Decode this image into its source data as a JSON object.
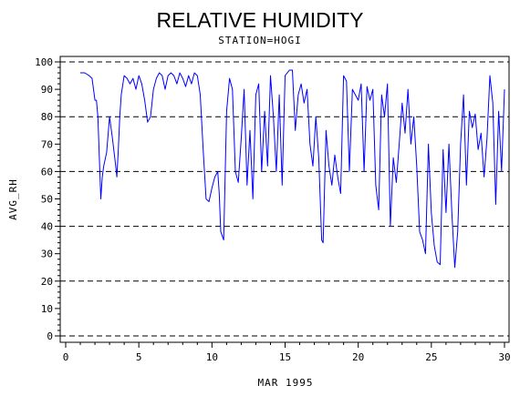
{
  "chart_data": {
    "type": "line",
    "title": "RELATIVE HUMIDITY",
    "subtitle": "STATION=HOGI",
    "xlabel": "MAR 1995",
    "ylabel": "AVG_RH",
    "xlim": [
      0,
      30
    ],
    "ylim": [
      0,
      100
    ],
    "xticks": [
      "0",
      "5",
      "10",
      "15",
      "20",
      "25",
      "30"
    ],
    "yticks": [
      "0",
      "10",
      "20",
      "30",
      "40",
      "50",
      "60",
      "70",
      "80",
      "90",
      "100"
    ],
    "reference_lines": [
      0,
      20,
      40,
      60,
      80,
      100
    ],
    "line_color": "#0000ff",
    "series": [
      {
        "x": [
          1.0,
          1.3,
          1.6,
          1.8,
          2.0,
          2.1,
          2.2,
          2.3,
          2.4,
          2.5,
          2.6,
          2.8,
          3.0,
          3.2,
          3.4,
          3.5,
          3.6,
          3.7,
          3.8,
          4.0,
          4.2,
          4.4,
          4.6,
          4.8,
          5.0,
          5.2,
          5.4,
          5.6,
          5.8,
          6.0,
          6.2,
          6.4,
          6.6,
          6.8,
          7.0,
          7.2,
          7.4,
          7.6,
          7.8,
          8.0,
          8.2,
          8.4,
          8.6,
          8.8,
          9.0,
          9.2,
          9.4,
          9.6,
          9.8,
          10.0,
          10.2,
          10.4,
          10.5,
          10.6,
          10.8,
          11.0,
          11.2,
          11.4,
          11.6,
          11.8,
          12.0,
          12.2,
          12.4,
          12.6,
          12.8,
          13.0,
          13.2,
          13.4,
          13.6,
          13.8,
          14.0,
          14.2,
          14.4,
          14.6,
          14.8,
          15.0,
          15.3,
          15.5,
          15.7,
          15.9,
          16.1,
          16.3,
          16.5,
          16.7,
          16.9,
          17.1,
          17.3,
          17.5,
          17.6,
          17.8,
          18.0,
          18.2,
          18.4,
          18.6,
          18.8,
          19.0,
          19.2,
          19.4,
          19.6,
          19.8,
          20.0,
          20.2,
          20.4,
          20.6,
          20.8,
          21.0,
          21.2,
          21.4,
          21.6,
          21.8,
          22.0,
          22.2,
          22.4,
          22.6,
          22.8,
          23.0,
          23.2,
          23.4,
          23.6,
          23.8,
          24.0,
          24.2,
          24.4,
          24.6,
          24.8,
          25.0,
          25.2,
          25.4,
          25.6,
          25.8,
          26.0,
          26.2,
          26.4,
          26.6,
          26.8,
          27.0,
          27.2,
          27.4,
          27.6,
          27.8,
          28.0,
          28.2,
          28.4,
          28.6,
          28.8,
          29.0,
          29.2,
          29.4,
          29.6,
          29.8,
          30.0
        ],
        "y": [
          96,
          96,
          95,
          94,
          86,
          86,
          80,
          65,
          50,
          58,
          62,
          67,
          80,
          72,
          63,
          58,
          68,
          80,
          88,
          95,
          94,
          92,
          94,
          90,
          95,
          92,
          86,
          78,
          80,
          90,
          94,
          96,
          95,
          90,
          95,
          96,
          95,
          92,
          96,
          94,
          91,
          95,
          92,
          96,
          95,
          88,
          68,
          50,
          49,
          54,
          58,
          60,
          52,
          38,
          35,
          82,
          94,
          90,
          60,
          56,
          72,
          90,
          55,
          75,
          50,
          88,
          92,
          60,
          82,
          62,
          95,
          80,
          60,
          88,
          55,
          95,
          97,
          97,
          75,
          88,
          92,
          85,
          90,
          70,
          62,
          80,
          65,
          35,
          34,
          75,
          62,
          55,
          66,
          58,
          52,
          95,
          93,
          60,
          90,
          88,
          86,
          92,
          60,
          91,
          86,
          90,
          55,
          46,
          88,
          80,
          92,
          40,
          65,
          56,
          70,
          85,
          74,
          90,
          70,
          80,
          62,
          38,
          35,
          30,
          70,
          45,
          33,
          27,
          26,
          68,
          45,
          70,
          45,
          25,
          38,
          70,
          88,
          55,
          82,
          76,
          81,
          68,
          74,
          58,
          72,
          95,
          85,
          48,
          82,
          60,
          90
        ]
      }
    ]
  }
}
